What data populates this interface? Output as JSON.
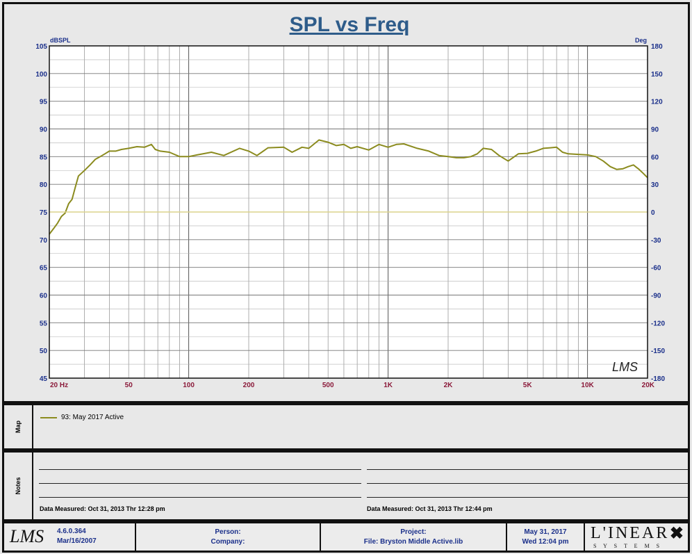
{
  "title": "SPL vs Freq",
  "chart_data": {
    "type": "line",
    "title": "SPL vs Freq",
    "x_scale": "log",
    "xlim": [
      20,
      20000
    ],
    "ylim": [
      45,
      105
    ],
    "y2lim": [
      -180,
      180
    ],
    "ylabel": "dBSPL",
    "y2label": "Deg",
    "x_ticks": [
      {
        "v": 20,
        "label": "20  Hz"
      },
      {
        "v": 50,
        "label": "50"
      },
      {
        "v": 100,
        "label": "100"
      },
      {
        "v": 200,
        "label": "200"
      },
      {
        "v": 500,
        "label": "500"
      },
      {
        "v": 1000,
        "label": "1K"
      },
      {
        "v": 2000,
        "label": "2K"
      },
      {
        "v": 5000,
        "label": "5K"
      },
      {
        "v": 10000,
        "label": "10K"
      },
      {
        "v": 20000,
        "label": "20K"
      }
    ],
    "y_ticks": [
      105,
      100,
      95,
      90,
      85,
      80,
      75,
      70,
      65,
      60,
      55,
      50,
      45
    ],
    "y2_ticks": [
      "180",
      "150",
      "120",
      "90",
      "60",
      "30",
      "0",
      "-30",
      "-60",
      "-90",
      "-120",
      "-150",
      "-180"
    ],
    "grid": true,
    "legend_position": "map-panel",
    "series": [
      {
        "name": "93: May 2017 Active",
        "color": "#8b8b1e",
        "x": [
          20,
          21,
          22,
          23,
          24,
          25,
          26,
          27,
          28,
          30,
          32,
          34,
          36,
          38,
          40,
          43,
          46,
          50,
          55,
          60,
          65,
          68,
          72,
          80,
          90,
          100,
          110,
          130,
          150,
          180,
          200,
          220,
          250,
          300,
          330,
          370,
          400,
          450,
          500,
          550,
          600,
          650,
          700,
          800,
          900,
          1000,
          1100,
          1200,
          1400,
          1600,
          1800,
          2000,
          2200,
          2400,
          2600,
          2800,
          3000,
          3300,
          3600,
          4000,
          4500,
          5000,
          5500,
          6000,
          6500,
          7000,
          7500,
          8000,
          9000,
          10000,
          11000,
          12000,
          13000,
          14000,
          15000,
          16000,
          17000,
          18000,
          19000,
          20000
        ],
        "y": [
          71,
          72,
          73,
          74.2,
          74.8,
          76.5,
          77.3,
          79.5,
          81.5,
          82.5,
          83.5,
          84.5,
          85,
          85.5,
          86,
          86,
          86.3,
          86.5,
          86.8,
          86.7,
          87.2,
          86.3,
          86,
          85.8,
          85,
          85,
          85.3,
          85.8,
          85.2,
          86.5,
          86,
          85.2,
          86.6,
          86.7,
          85.8,
          86.7,
          86.5,
          88,
          87.6,
          87,
          87.2,
          86.5,
          86.8,
          86.2,
          87.2,
          86.7,
          87.2,
          87.3,
          86.5,
          86,
          85.2,
          85,
          84.8,
          84.8,
          85,
          85.5,
          86.5,
          86.3,
          85.2,
          84.2,
          85.5,
          85.6,
          86,
          86.5,
          86.6,
          86.7,
          85.8,
          85.5,
          85.4,
          85.3,
          85,
          84.2,
          83.2,
          82.7,
          82.8,
          83.2,
          83.5,
          82.8,
          82,
          81.2
        ]
      },
      {
        "name": "",
        "axis": "right",
        "color": "#dcd48c",
        "x": [
          20,
          20000
        ],
        "y": [
          0,
          0
        ]
      }
    ]
  },
  "map_panel": {
    "label": "Map",
    "legend_entry": "93: May 2017 Active"
  },
  "notes_panel": {
    "label": "Notes",
    "left_measured": "Data Measured: Oct 31, 2013  Thr 12:28 pm",
    "right_measured": "Data Measured: Oct 31, 2013  Thr 12:44 pm"
  },
  "footer": {
    "logo": "LMS",
    "version": "4.6.0.364",
    "version_date": "Mar/16/2007",
    "person": "Person:",
    "company": "Company:",
    "project": "Project:",
    "file": "File: Bryston Middle Active.lib",
    "date": "May 31, 2017",
    "time": "Wed 12:04 pm",
    "brand_top": "L'INEAR",
    "brand_bottom": "S Y S T E M S"
  },
  "watermark": "LMS",
  "colors": {
    "axis_labels": "#1a2f8a",
    "x_tick_labels": "#8b1a3a",
    "trace": "#8b8b1e",
    "phase_line": "#dcd48c",
    "title": "#2e5c8a"
  }
}
